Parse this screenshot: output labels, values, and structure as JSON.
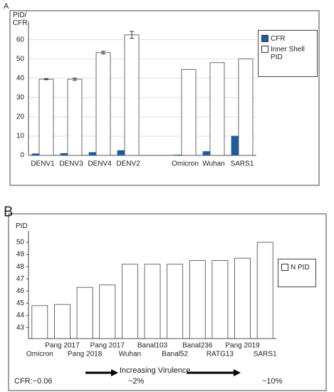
{
  "chart_data": [
    {
      "type": "bar",
      "panel": "A",
      "ylabel": "PID/ CFR",
      "categories": [
        "DENV1",
        "DENV3",
        "DENV4",
        "DENV2",
        null,
        "Omicron",
        "Wuhan",
        "SARS1"
      ],
      "series": [
        {
          "name": "CFR",
          "color": "#1f5c9e",
          "values": [
            0.8,
            1.0,
            1.5,
            2.5,
            null,
            0.2,
            2.0,
            10
          ]
        },
        {
          "name": "Inner Shell PID",
          "color": "#ffffff",
          "values": [
            39.5,
            39.5,
            53.3,
            62.5,
            null,
            44.6,
            48.1,
            50
          ],
          "errors": [
            0.3,
            0.6,
            0.7,
            1.8,
            null,
            null,
            null,
            null
          ]
        }
      ],
      "ylim": [
        0,
        68
      ],
      "yticks": [
        0,
        10,
        20,
        30,
        40,
        50,
        60
      ],
      "grid": true,
      "legend": "right"
    },
    {
      "type": "bar",
      "panel": "B",
      "ylabel": "PID",
      "categories": [
        "Omicron",
        "Pang 2017",
        "Pang 2018",
        "Pang 2017",
        "Wuhan",
        "Banal103",
        "Banal52",
        "Banal236",
        "RATG13",
        "Pang 2019",
        "SARS1"
      ],
      "series": [
        {
          "name": "N PID",
          "color": "#ffffff",
          "values": [
            44.8,
            44.9,
            46.3,
            46.5,
            48.2,
            48.2,
            48.2,
            48.5,
            48.5,
            48.7,
            50
          ]
        }
      ],
      "ylim": [
        42.1,
        50.7
      ],
      "yticks": [
        43,
        44,
        45,
        46,
        47,
        48,
        49,
        50
      ],
      "grid": false,
      "legend": "right",
      "annotations": [
        "CFR:~0.06",
        "Increasing Virulence",
        "~2%",
        "~10%"
      ]
    }
  ]
}
